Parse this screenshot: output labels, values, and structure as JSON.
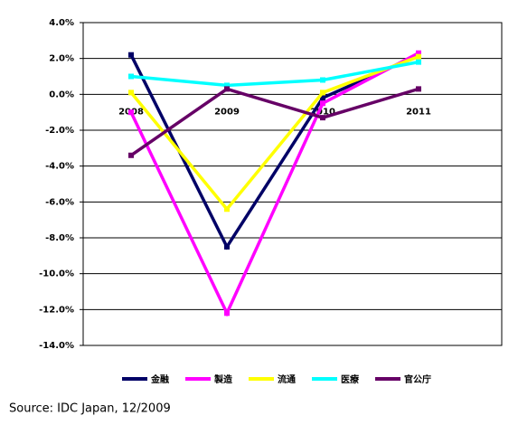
{
  "chart_data": {
    "type": "line",
    "categories": [
      "2008",
      "2009",
      "2010",
      "2011"
    ],
    "series": [
      {
        "name": "金融",
        "color": "#000066",
        "values": [
          2.2,
          -8.5,
          -0.2,
          2.2
        ]
      },
      {
        "name": "製造",
        "color": "#ff00ff",
        "values": [
          -1.0,
          -12.2,
          -0.5,
          2.3
        ]
      },
      {
        "name": "流通",
        "color": "#ffff00",
        "values": [
          0.1,
          -6.4,
          0.1,
          2.1
        ]
      },
      {
        "name": "医療",
        "color": "#00ffff",
        "values": [
          1.0,
          0.5,
          0.8,
          1.8
        ]
      },
      {
        "name": "官公庁",
        "color": "#660066",
        "values": [
          -3.4,
          0.3,
          -1.3,
          0.3
        ]
      }
    ],
    "ylim": [
      -14,
      4
    ],
    "yticks": [
      {
        "value": 4,
        "label": "4.0%"
      },
      {
        "value": 2,
        "label": "2.0%"
      },
      {
        "value": 0,
        "label": "0.0%"
      },
      {
        "value": -2,
        "label": "-2.0%"
      },
      {
        "value": -4,
        "label": "-4.0%"
      },
      {
        "value": -6,
        "label": "-6.0%"
      },
      {
        "value": -8,
        "label": "-8.0%"
      },
      {
        "value": -10,
        "label": "-10.0%"
      },
      {
        "value": -12,
        "label": "-12.0%"
      },
      {
        "value": -14,
        "label": "-14.0%"
      }
    ],
    "grid": true,
    "source": "Source: IDC Japan, 12/2009"
  }
}
